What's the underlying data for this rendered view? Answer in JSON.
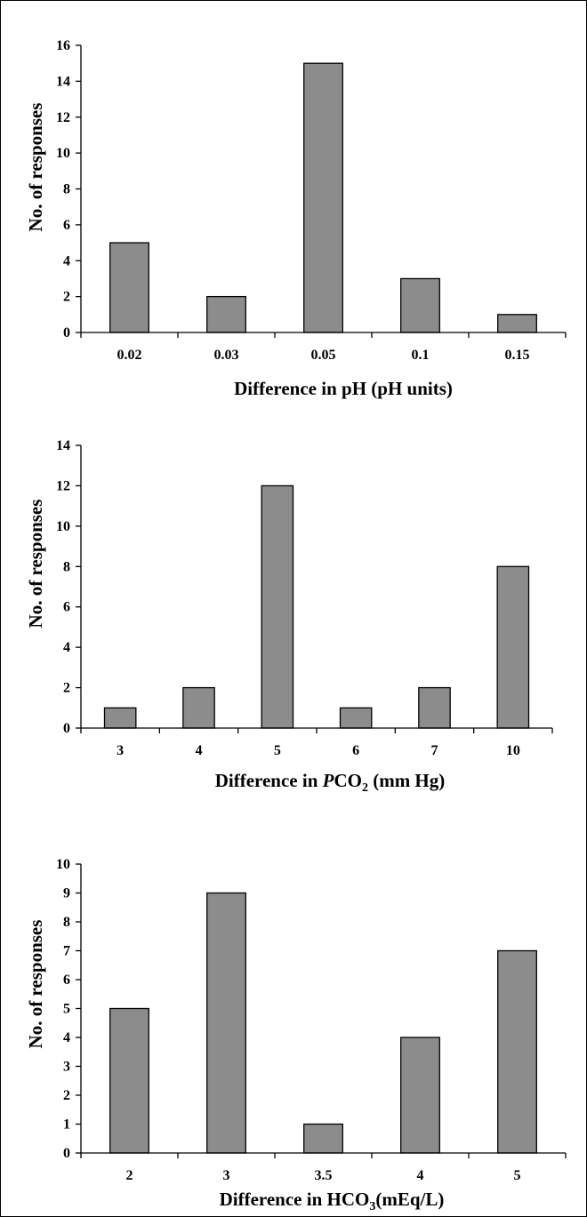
{
  "chart_data": [
    {
      "type": "bar",
      "categories": [
        "0.02",
        "0.03",
        "0.05",
        "0.1",
        "0.15"
      ],
      "values": [
        5,
        2,
        15,
        3,
        1
      ],
      "ylim": [
        0,
        16
      ],
      "ytick_step": 2,
      "xlabel": "Difference in pH (pH units)",
      "ylabel": "No. of responses",
      "bar_color": "#8c8c8c",
      "grid": false
    },
    {
      "type": "bar",
      "categories": [
        "3",
        "4",
        "5",
        "6",
        "7",
        "10"
      ],
      "values": [
        1,
        2,
        12,
        1,
        2,
        8
      ],
      "ylim": [
        0,
        14
      ],
      "ytick_step": 2,
      "xlabel_parts": [
        "Difference in ",
        "P",
        "CO",
        "2",
        " (mm Hg)"
      ],
      "ylabel": "No. of responses",
      "bar_color": "#8c8c8c",
      "grid": false
    },
    {
      "type": "bar",
      "categories": [
        "2",
        "3",
        "3.5",
        "4",
        "5"
      ],
      "values": [
        5,
        9,
        1,
        4,
        7
      ],
      "ylim": [
        0,
        10
      ],
      "ytick_step": 1,
      "xlabel_parts": [
        "Difference in HCO",
        "3",
        "(mEq/L)"
      ],
      "ylabel": "No. of responses",
      "bar_color": "#8c8c8c",
      "grid": false
    }
  ]
}
